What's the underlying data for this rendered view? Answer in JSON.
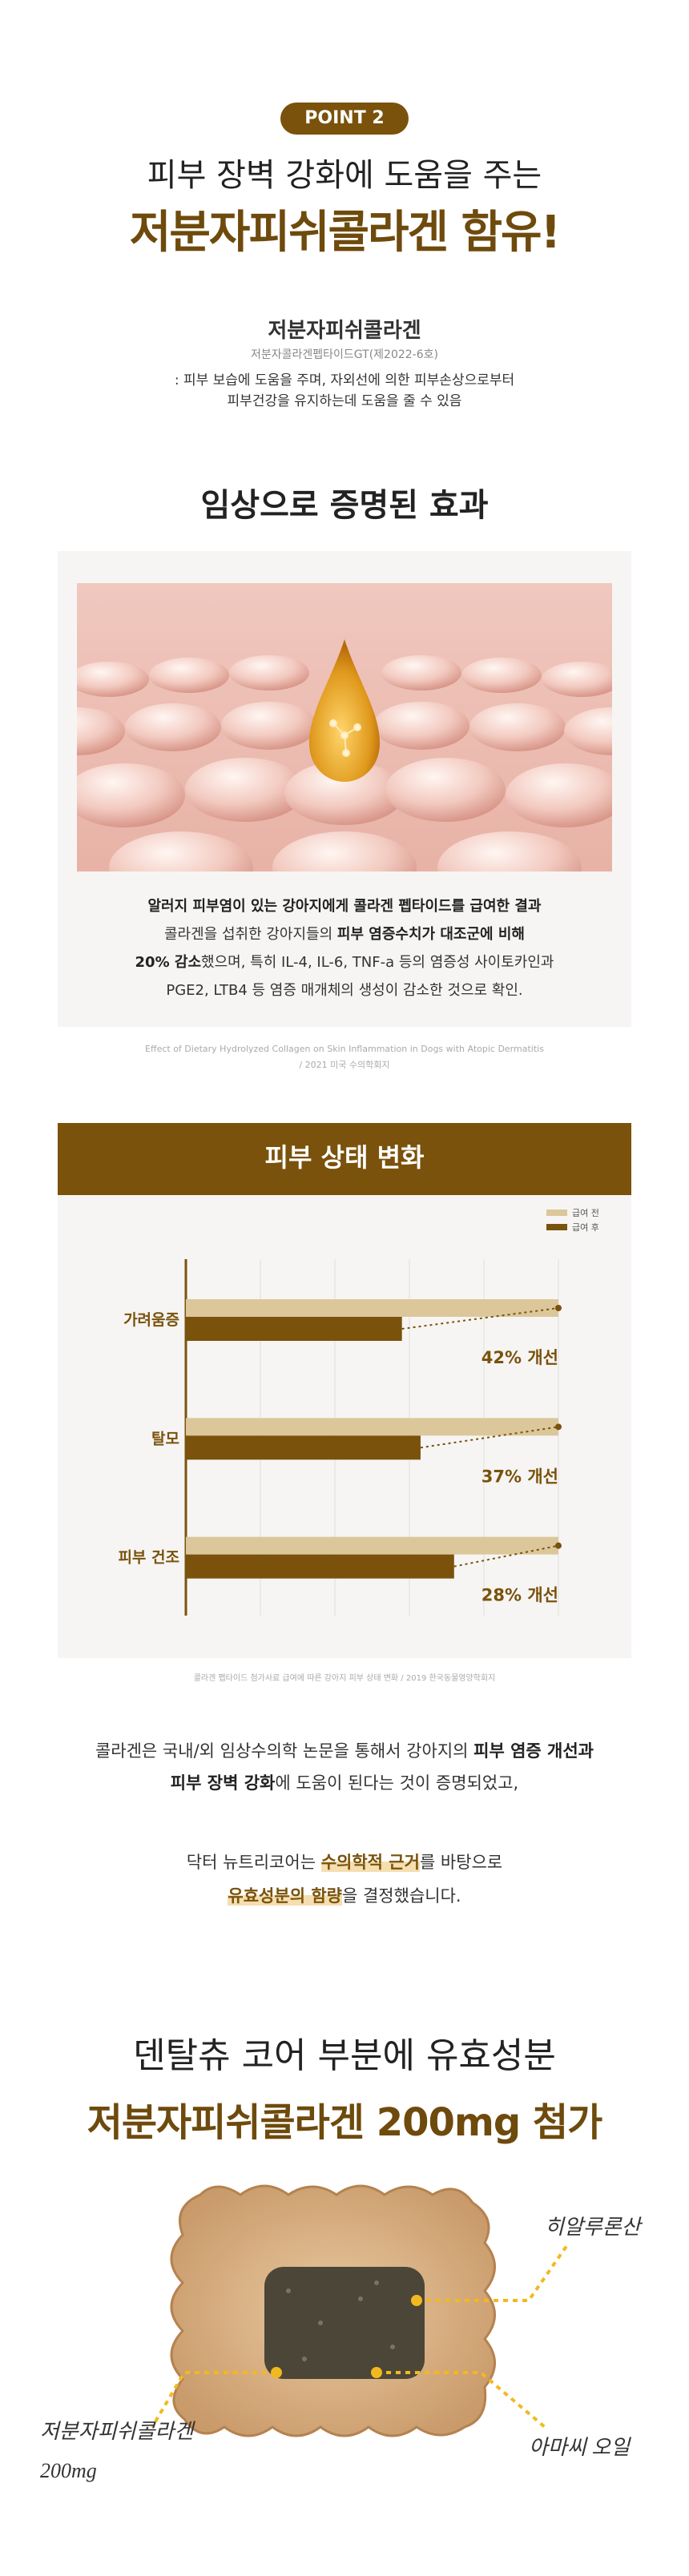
{
  "badge": "POINT 2",
  "headline": {
    "line1": "피부 장벽 강화에 도움을 주는",
    "line2": "저분자피쉬콜라겐 함유!"
  },
  "ingredient": {
    "name": "저분자피쉬콜라겐",
    "registration": "저분자콜라겐펩타이드GT(제2022-6호)",
    "description": [
      ": 피부 보습에 도움을 주며, 자외선에 의한 피부손상으로부터",
      "피부건강을 유지하는데 도움을 줄 수 있음"
    ]
  },
  "clinical": {
    "title": "임상으로 증명된 효과",
    "text": {
      "line1": "알러지 피부염이 있는 강아지에게 콜라겐 펩타이드를 급여한 결과",
      "line2a": "콜라겐을 섭취한 강아지들의 ",
      "line2b": "피부 염증수치가 대조군에 비해",
      "line3a": "20% 감소",
      "line3b": "했으며, 특히 IL-4, IL-6, TNF-a 등의 염증성 사이토카인과",
      "line4": "PGE2, LTB4 등 염증 매개체의 생성이 감소한 것으로 확인."
    },
    "citation": [
      "Effect of Dietary Hydrolyzed Collagen on Skin Inflammation in Dogs with Atopic Dermatitis",
      "/ 2021 미국 수의학회지"
    ]
  },
  "chart_data": {
    "type": "bar",
    "orientation": "horizontal",
    "title": "피부 상태 변화",
    "categories": [
      "가려움증",
      "탈모",
      "피부 건조"
    ],
    "series": [
      {
        "name": "급여 전",
        "color": "#dcc79b",
        "values": [
          100,
          100,
          100
        ]
      },
      {
        "name": "급여 후",
        "color": "#7a520b",
        "values": [
          58,
          63,
          72
        ]
      }
    ],
    "annotations": [
      "42% 개선",
      "37% 개선",
      "28% 개선"
    ],
    "xlim": [
      0,
      100
    ],
    "xticks": [
      0,
      20,
      40,
      60,
      80,
      100
    ],
    "grid": true,
    "legend": "top-right",
    "footnote": "콜라겐 펩타이드 첨가사료 급여에 따른 강아지 피부 상태 변화 / 2019 한국동물영양학회지"
  },
  "conclusion": {
    "line1a": "콜라겐은 국내/외 임상수의학 논문을 통해서 강아지의 ",
    "line1b": "피부 염증 개선과",
    "line2a": "피부 장벽 강화",
    "line2b": "에 도움이 된다는 것이 증명되었고,",
    "line3a": "닥터 뉴트리코어는 ",
    "line3b": "수의학적 근거",
    "line3c": "를 바탕으로",
    "line4a": "유효성분의 함량",
    "line4b": "을 결정했습니다."
  },
  "core": {
    "line1": "덴탈츄 코어 부분에 유효성분",
    "line2": "저분자피쉬콜라겐 200mg 첨가",
    "labels": {
      "hyaluronic": "히알루론산",
      "flaxseed": "아마씨 오일",
      "collagen": "저분자피쉬콜라겐",
      "amount": "200mg"
    }
  }
}
